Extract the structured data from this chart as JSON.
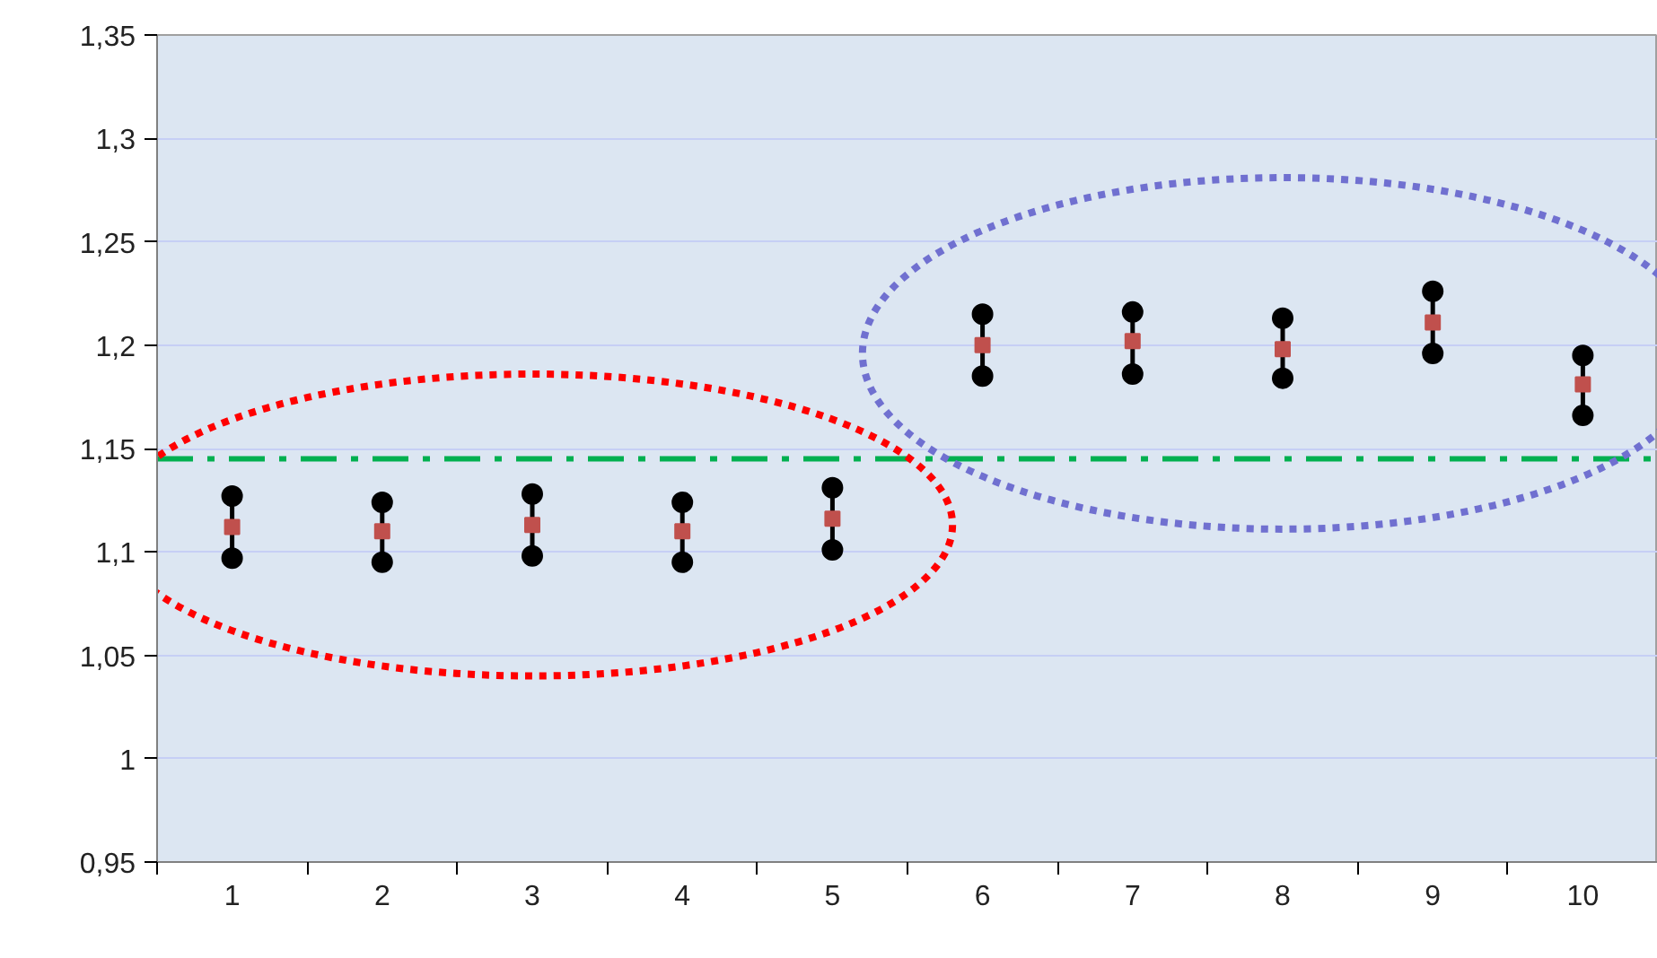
{
  "chart_data": {
    "type": "scatter",
    "categories": [
      "1",
      "2",
      "3",
      "4",
      "5",
      "6",
      "7",
      "8",
      "9",
      "10"
    ],
    "series": [
      {
        "color": "#000000",
        "marker": "circle",
        "values": [
          1.127,
          1.124,
          1.128,
          1.124,
          1.131,
          1.215,
          1.216,
          1.213,
          1.226,
          1.195
        ]
      },
      {
        "color": "#c0504d",
        "marker": "square",
        "values": [
          1.112,
          1.11,
          1.113,
          1.11,
          1.116,
          1.2,
          1.202,
          1.198,
          1.211,
          1.181
        ]
      },
      {
        "color": "#000000",
        "marker": "circle",
        "values": [
          1.097,
          1.095,
          1.098,
          1.095,
          1.101,
          1.185,
          1.186,
          1.184,
          1.196,
          1.166
        ]
      }
    ],
    "ylim": [
      0.95,
      1.35
    ],
    "yticks": [
      {
        "value": 0.95,
        "label": "0,95"
      },
      {
        "value": 1,
        "label": "1"
      },
      {
        "value": 1.05,
        "label": "1,05"
      },
      {
        "value": 1.1,
        "label": "1,1"
      },
      {
        "value": 1.15,
        "label": "1,15"
      },
      {
        "value": 1.2,
        "label": "1,2"
      },
      {
        "value": 1.25,
        "label": "1,25"
      },
      {
        "value": 1.3,
        "label": "1,3"
      },
      {
        "value": 1.35,
        "label": "1,35"
      }
    ],
    "grid": "y",
    "ref_lines": [
      {
        "axis": "y",
        "value": 1.145,
        "color": "#00b050",
        "line_style": "dashdot"
      }
    ]
  }
}
